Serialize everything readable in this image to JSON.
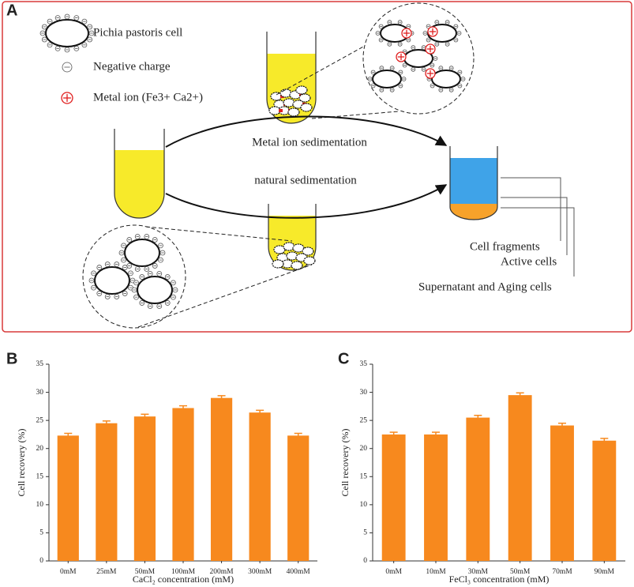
{
  "panel_labels": [
    "A",
    "B",
    "C"
  ],
  "panel_a": {
    "legend": [
      "Pichia pastoris  cell",
      "Negative charge",
      "Metal ion (Fe3+ Ca2+)"
    ],
    "arrows": [
      "Metal ion  sedimentation",
      "natural sedimentation"
    ],
    "layers": [
      "Cell fragments",
      "Active cells",
      "Supernatant and Aging cells"
    ]
  },
  "chart_data": [
    {
      "type": "bar",
      "categories": [
        "0mM",
        "25mM",
        "50mM",
        "100mM",
        "200mM",
        "300mM",
        "400mM"
      ],
      "values": [
        22.3,
        24.5,
        25.7,
        27.2,
        29.0,
        26.4,
        22.3
      ],
      "errors": [
        0.4,
        0.4,
        0.4,
        0.4,
        0.4,
        0.4,
        0.4
      ],
      "color": "#f7891e",
      "xlabel": "CaCl₂ concentration (mM)",
      "ylabel": "Cell recovery (%)",
      "ylim": [
        0,
        35
      ],
      "yticks": [
        0,
        5,
        10,
        15,
        20,
        25,
        30,
        35
      ]
    },
    {
      "type": "bar",
      "categories": [
        "0mM",
        "10mM",
        "30mM",
        "50mM",
        "70mM",
        "90mM"
      ],
      "values": [
        22.5,
        22.5,
        25.5,
        29.5,
        24.1,
        21.4
      ],
      "errors": [
        0.4,
        0.4,
        0.4,
        0.4,
        0.4,
        0.4
      ],
      "color": "#f7891e",
      "xlabel": "FeCl₃ concentration (mM)",
      "ylabel": "Cell recovery (%)",
      "ylim": [
        0,
        35
      ],
      "yticks": [
        0,
        5,
        10,
        15,
        20,
        25,
        30,
        35
      ]
    }
  ]
}
